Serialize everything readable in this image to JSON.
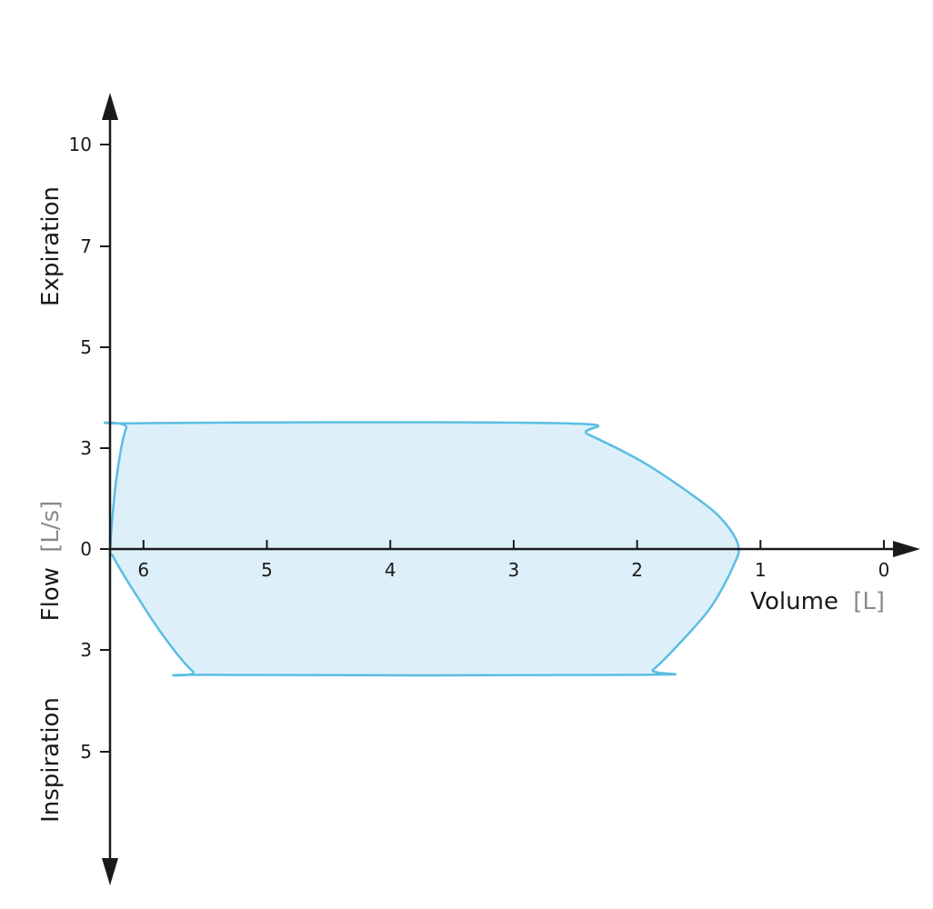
{
  "chart_data": {
    "type": "area",
    "xlabel": "Volume",
    "xlabel_unit": "[L]",
    "ylabel": "Flow",
    "ylabel_unit": "[L/s]",
    "y_upper_label": "Expiration",
    "y_lower_label": "Inspiration",
    "x_reversed": true,
    "x_ticks": [
      "6",
      "5",
      "4",
      "3",
      "2",
      "1",
      "0"
    ],
    "x_tick_values": [
      6,
      5,
      4,
      3,
      2,
      1,
      0
    ],
    "y_ticks_upper": [
      "10",
      "7",
      "5",
      "3",
      "0"
    ],
    "y_ticks_lower": [
      "3",
      "5"
    ],
    "grid": false,
    "colors": {
      "fill": "#ddf0f9",
      "stroke": "#5bbde3",
      "axis": "#1a1a1a"
    },
    "series": [
      {
        "points": [
          {
            "volume": 6.27,
            "flow": 0
          },
          {
            "volume": 6.22,
            "flow": 2.05
          },
          {
            "volume": 6.14,
            "flow": 3.55
          },
          {
            "volume": 6.03,
            "flow": 3.7
          },
          {
            "volume": 2.62,
            "flow": 3.7
          },
          {
            "volume": 2.4,
            "flow": 3.38
          },
          {
            "volume": 1.95,
            "flow": 2.55
          },
          {
            "volume": 1.5,
            "flow": 1.45
          },
          {
            "volume": 1.3,
            "flow": 0.82
          },
          {
            "volume": 1.18,
            "flow": 0.1
          },
          {
            "volume": 1.22,
            "flow": -0.5
          },
          {
            "volume": 1.4,
            "flow": -1.7
          },
          {
            "volume": 1.65,
            "flow": -2.75
          },
          {
            "volume": 1.87,
            "flow": -3.55
          },
          {
            "volume": 1.97,
            "flow": -3.7
          },
          {
            "volume": 5.47,
            "flow": -3.7
          },
          {
            "volume": 5.6,
            "flow": -3.6
          },
          {
            "volume": 5.85,
            "flow": -2.5
          },
          {
            "volume": 6.12,
            "flow": -1.0
          },
          {
            "volume": 6.25,
            "flow": -0.2
          }
        ]
      }
    ]
  }
}
